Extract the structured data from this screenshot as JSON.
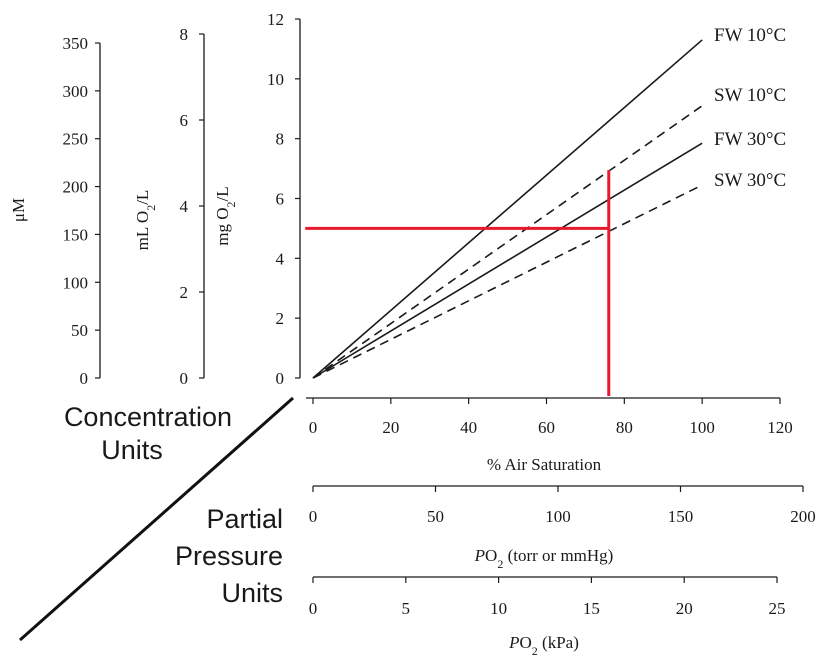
{
  "chart_data": {
    "type": "line",
    "x": {
      "label": "% Air Saturation",
      "range": [
        0,
        120
      ],
      "ticks": [
        0,
        20,
        40,
        60,
        80,
        100,
        120
      ]
    },
    "y": {
      "label": "",
      "range": [
        0,
        12
      ],
      "ticks": [
        0,
        2,
        4,
        6,
        8,
        10,
        12
      ]
    },
    "series": [
      {
        "name": "FW 10°C",
        "style": "solid",
        "x": [
          0,
          100
        ],
        "y": [
          0,
          11.3
        ]
      },
      {
        "name": "SW 10°C",
        "style": "dashed",
        "x": [
          0,
          100
        ],
        "y": [
          0,
          9.1
        ]
      },
      {
        "name": "FW 30°C",
        "style": "solid",
        "x": [
          0,
          100
        ],
        "y": [
          0,
          7.85
        ]
      },
      {
        "name": "SW 30°C",
        "style": "dashed",
        "x": [
          0,
          100
        ],
        "y": [
          0,
          6.45
        ]
      }
    ],
    "highlight": {
      "color": "#e8192c",
      "horizontal": {
        "y": 5,
        "x_from": -2,
        "x_to": 76
      },
      "vertical": {
        "x": 76,
        "y_from": 6.95,
        "y_to": -0.6
      }
    },
    "concentration_axes": [
      {
        "label": "μM",
        "range": [
          0,
          350
        ],
        "ticks": [
          0,
          50,
          100,
          150,
          200,
          250,
          300,
          350
        ]
      },
      {
        "label": "mL O2/L",
        "label_main": "mL O",
        "label_sub": "2",
        "label_end": "/L",
        "range": [
          0,
          8
        ],
        "ticks": [
          0,
          2,
          4,
          6,
          8
        ]
      },
      {
        "label": "mg O2/L",
        "label_main": "mg O",
        "label_sub": "2",
        "label_end": "/L",
        "range": [
          0,
          12
        ],
        "ticks": [
          0,
          2,
          4,
          6
        ]
      }
    ],
    "pressure_axes": [
      {
        "label": "PO2 (torr or mmHg)",
        "label_italic": "P",
        "label_main": "O",
        "label_sub": "2",
        "label_end": " (torr or mmHg)",
        "range": [
          0,
          200
        ],
        "ticks": [
          0,
          50,
          100,
          150,
          200
        ]
      },
      {
        "label": "PO2 (kPa)",
        "label_italic": "P",
        "label_main": "O",
        "label_sub": "2",
        "label_end": " (kPa)",
        "range": [
          0,
          25
        ],
        "ticks": [
          0,
          5,
          10,
          15,
          20,
          25
        ]
      }
    ]
  },
  "labels": {
    "concentration_line1": "Concentration",
    "concentration_line2": "Units",
    "partial_line1": "Partial",
    "partial_line2": "Pressure",
    "partial_line3": "Units"
  }
}
